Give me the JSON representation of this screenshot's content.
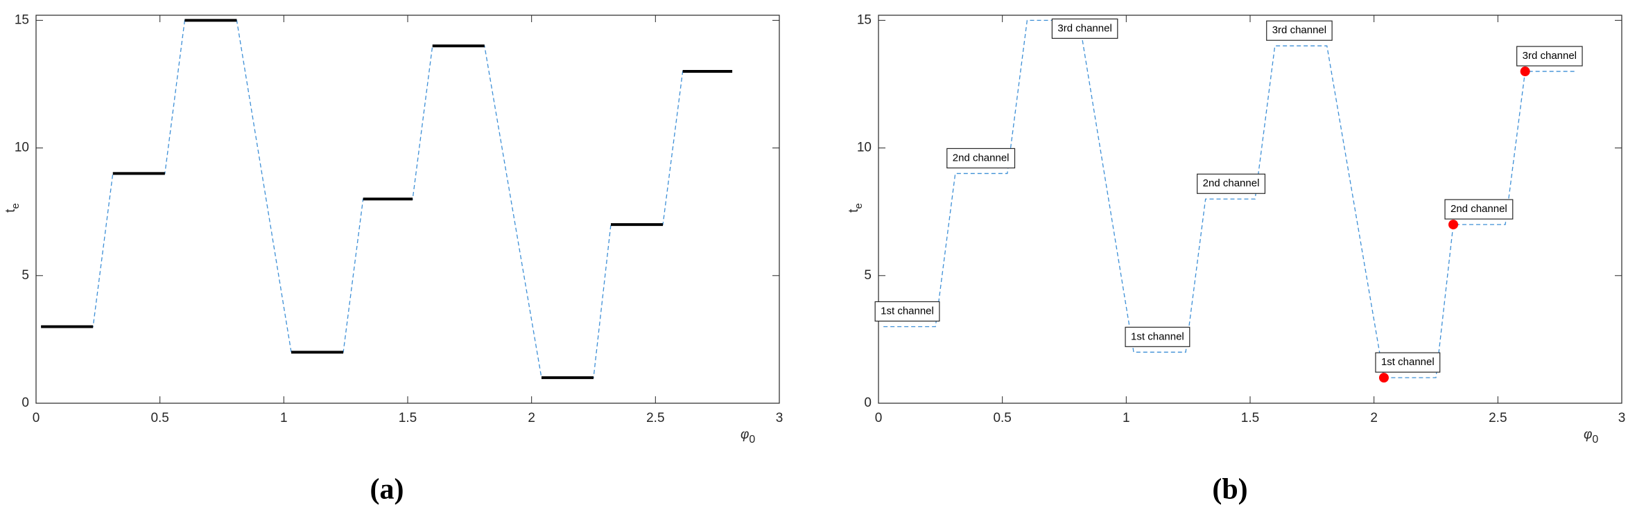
{
  "chart_data": [
    {
      "type": "line",
      "panel_label": "(a)",
      "ylabel": "t",
      "ylabel_sub": "e",
      "xlabel": "φ",
      "xlabel_sub": "0",
      "xlim": [
        0,
        3
      ],
      "xticks": [
        0,
        0.5,
        1,
        1.5,
        2,
        2.5,
        3
      ],
      "ylim": [
        0,
        15.2
      ],
      "yticks": [
        0,
        5,
        10,
        15
      ],
      "step_color": "#000000",
      "series": [
        {
          "color": "#3d8fd6",
          "x": [
            0.02,
            0.23,
            0.31,
            0.52,
            0.6,
            0.81,
            1.03,
            1.24,
            1.32,
            1.52,
            1.6,
            1.81,
            2.04,
            2.25,
            2.32,
            2.53,
            2.61,
            2.81
          ],
          "values": [
            3,
            3,
            9,
            9,
            15,
            15,
            2,
            2,
            8,
            8,
            14,
            14,
            1,
            1,
            7,
            7,
            13,
            13
          ]
        }
      ]
    },
    {
      "type": "line",
      "panel_label": "(b)",
      "ylabel": "t",
      "ylabel_sub": "e",
      "xlabel": "φ",
      "xlabel_sub": "0",
      "xlim": [
        0,
        3
      ],
      "xticks": [
        0,
        0.5,
        1,
        1.5,
        2,
        2.5,
        3
      ],
      "ylim": [
        0,
        15.2
      ],
      "yticks": [
        0,
        5,
        10,
        15
      ],
      "series": [
        {
          "color": "#3d8fd6",
          "x": [
            0.02,
            0.23,
            0.31,
            0.52,
            0.6,
            0.81,
            1.03,
            1.24,
            1.32,
            1.52,
            1.6,
            1.81,
            2.04,
            2.25,
            2.32,
            2.53,
            2.61,
            2.81
          ],
          "values": [
            3,
            3,
            9,
            9,
            15,
            15,
            2,
            2,
            8,
            8,
            14,
            14,
            1,
            1,
            7,
            7,
            13,
            13
          ]
        }
      ],
      "annotations": [
        "1st channel",
        "2nd channel",
        "3rd channel",
        "1st channel",
        "2nd channel",
        "3rd channel",
        "1st channel",
        "2nd channel",
        "3rd channel"
      ],
      "markers": {
        "color": "#ff0000",
        "x": [
          2.04,
          2.32,
          2.61
        ],
        "values": [
          1,
          7,
          13
        ]
      }
    }
  ]
}
